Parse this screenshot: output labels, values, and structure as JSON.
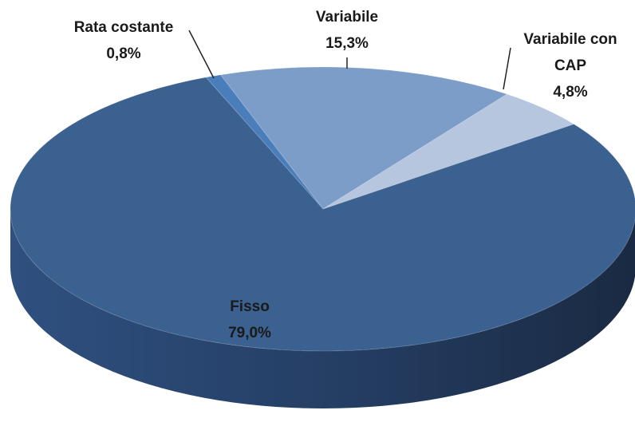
{
  "chart_data": {
    "type": "pie",
    "categories": [
      "Rata costante",
      "Variabile",
      "Variabile con CAP",
      "Fisso"
    ],
    "values": [
      0.8,
      15.3,
      4.8,
      79.0
    ],
    "value_labels": [
      "0,8%",
      "15,3%",
      "4,8%",
      "79,0%"
    ],
    "colors": [
      "#4a7ebb",
      "#7d9dc9",
      "#b6c6df",
      "#3b6190"
    ]
  }
}
